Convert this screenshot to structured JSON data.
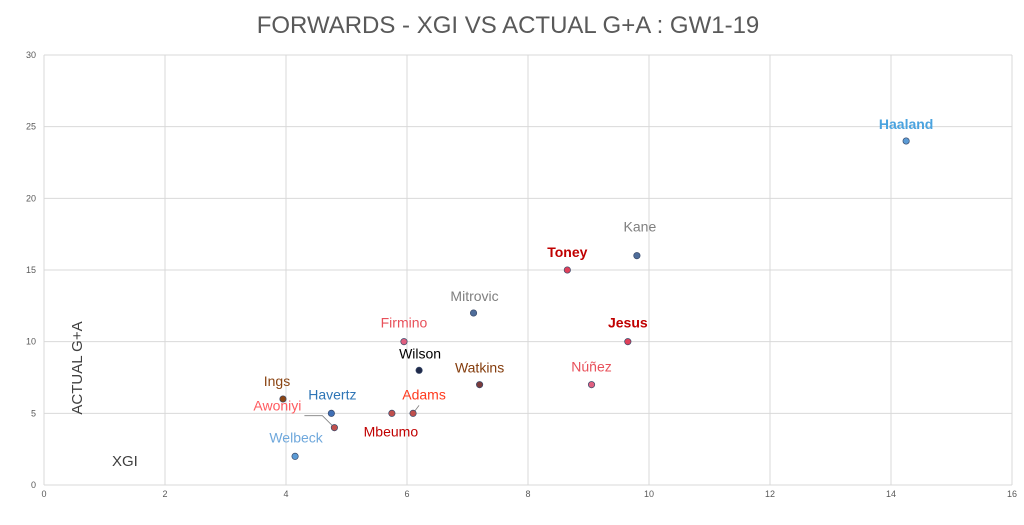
{
  "chart_data": {
    "type": "scatter",
    "title": "FORWARDS - XGI VS ACTUAL G+A : GW1-19",
    "xlabel": "XGI",
    "ylabel": "ACTUAL G+A",
    "xlim": [
      0,
      16
    ],
    "ylim": [
      0,
      30
    ],
    "x_ticks": [
      0,
      2,
      4,
      6,
      8,
      10,
      12,
      14,
      16
    ],
    "y_ticks": [
      0,
      5,
      10,
      15,
      20,
      25,
      30
    ],
    "grid": true,
    "points": [
      {
        "label": "Haaland",
        "x": 14.25,
        "y": 24,
        "color": "#5b9bd5",
        "label_color": "#4aa3df",
        "bold": true
      },
      {
        "label": "Kane",
        "x": 9.8,
        "y": 16,
        "color": "#4f6d9a",
        "label_color": "#7f7f7f",
        "bold": false
      },
      {
        "label": "Toney",
        "x": 8.65,
        "y": 15,
        "color": "#e0405a",
        "label_color": "#c00000",
        "bold": true
      },
      {
        "label": "Mitrovic",
        "x": 7.1,
        "y": 12,
        "color": "#4f6d9a",
        "label_color": "#7f7f7f",
        "bold": false
      },
      {
        "label": "Jesus",
        "x": 9.65,
        "y": 10,
        "color": "#e0405a",
        "label_color": "#c00000",
        "bold": true
      },
      {
        "label": "Firmino",
        "x": 5.95,
        "y": 10,
        "color": "#e06080",
        "label_color": "#e8505a",
        "bold": false
      },
      {
        "label": "Wilson",
        "x": 6.2,
        "y": 8,
        "color": "#1f2a4a",
        "label_color": "#000000",
        "bold": false
      },
      {
        "label": "Watkins",
        "x": 7.2,
        "y": 7,
        "color": "#7a3b3b",
        "label_color": "#843c0c",
        "bold": false
      },
      {
        "label": "Núñez",
        "x": 9.05,
        "y": 7,
        "color": "#e06080",
        "label_color": "#e8505a",
        "bold": false
      },
      {
        "label": "Ings",
        "x": 3.95,
        "y": 6,
        "color": "#8b4513",
        "label_color": "#8b4513",
        "bold": false
      },
      {
        "label": "Havertz",
        "x": 4.75,
        "y": 5,
        "color": "#3f6fb5",
        "label_color": "#2e75b6",
        "bold": false
      },
      {
        "label": "Adams",
        "x": 6.1,
        "y": 5,
        "color": "#c0504d",
        "label_color": "#ff3b1f",
        "bold": false
      },
      {
        "label": "Mbeumo",
        "x": 5.75,
        "y": 5,
        "color": "#c0504d",
        "label_color": "#c00000",
        "bold": false
      },
      {
        "label": "Awoniyi",
        "x": 4.8,
        "y": 4,
        "color": "#c0504d",
        "label_color": "#ff5a5f",
        "bold": false
      },
      {
        "label": "Welbeck",
        "x": 4.15,
        "y": 2,
        "color": "#5b9bd5",
        "label_color": "#6fa8dc",
        "bold": false
      }
    ]
  }
}
